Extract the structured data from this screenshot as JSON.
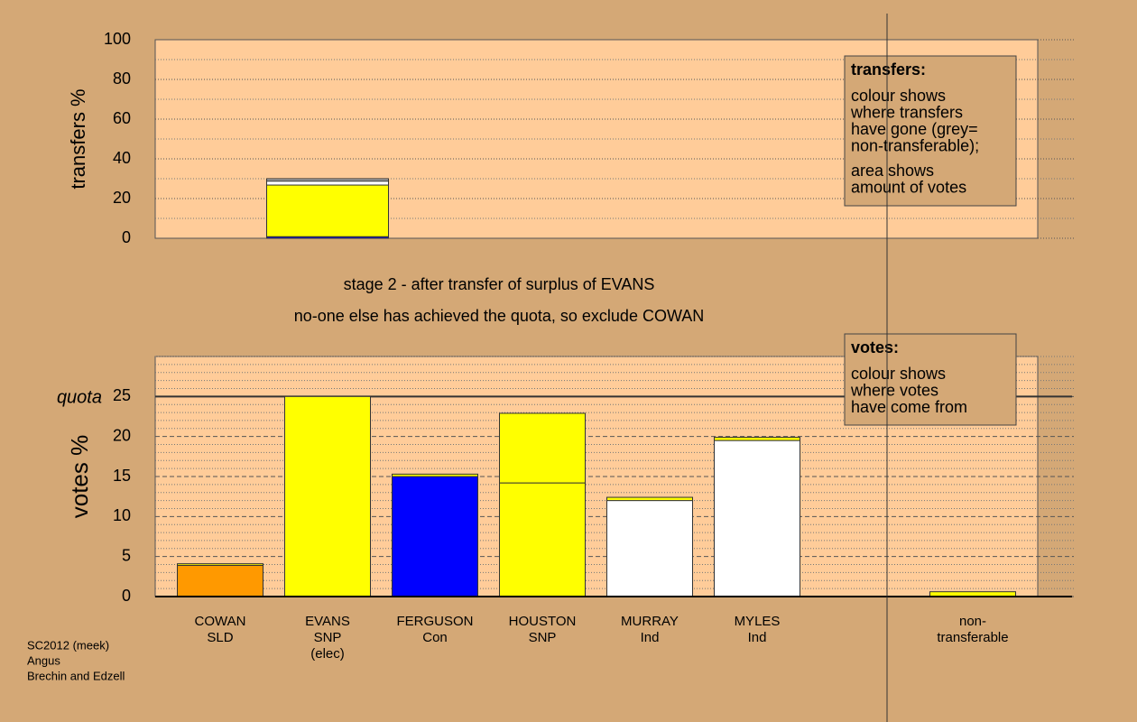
{
  "chart_data": [
    {
      "type": "bar",
      "stacked": true,
      "ylabel": "transfers %",
      "ylim": [
        0,
        100
      ],
      "yticks": [
        0,
        20,
        40,
        60,
        80,
        100
      ],
      "minor_yticks": [
        10,
        30,
        50,
        70,
        90
      ],
      "series": [
        {
          "color": "#0000ff",
          "values": [
            null,
            0.8,
            null,
            null,
            null,
            null,
            null
          ]
        },
        {
          "color": "#ffff00",
          "values": [
            null,
            26,
            null,
            null,
            null,
            null,
            null
          ]
        },
        {
          "color": "#ffffff",
          "values": [
            null,
            2,
            null,
            null,
            null,
            null,
            null
          ]
        },
        {
          "color": "#aaaaaa",
          "values": [
            null,
            1.2,
            null,
            null,
            null,
            null,
            null
          ]
        }
      ],
      "legend": {
        "title": "transfers:",
        "paragraphs": [
          [
            "colour shows",
            "where transfers",
            "have gone (grey=",
            "non-transferable);"
          ],
          [
            "area shows",
            "amount of votes"
          ]
        ]
      }
    },
    {
      "type": "bar",
      "stacked": true,
      "ylabel": "votes %",
      "ylim": [
        0,
        30
      ],
      "yticks": [
        0,
        5,
        10,
        15,
        20,
        25
      ],
      "minor_yticks": [
        1,
        2,
        3,
        4,
        6,
        7,
        8,
        9,
        11,
        12,
        13,
        14,
        16,
        17,
        18,
        19,
        21,
        22,
        23,
        24,
        26,
        27,
        28,
        29,
        30
      ],
      "quota": {
        "value": 25,
        "label": "quota"
      },
      "categories": [
        [
          "COWAN",
          "SLD"
        ],
        [
          "EVANS",
          "SNP",
          "(elec)"
        ],
        [
          "FERGUSON",
          "Con"
        ],
        [
          "HOUSTON",
          "SNP"
        ],
        [
          "MURRAY",
          "Ind"
        ],
        [
          "MYLES",
          "Ind"
        ],
        [
          "non-",
          "transferable"
        ]
      ],
      "series": [
        {
          "colors": [
            "#ff9900",
            "#ffff00",
            "#0000ff",
            "#ffff00",
            "#ffffff",
            "#ffffff",
            null
          ],
          "values": [
            3.9,
            25,
            15.0,
            14.2,
            12.0,
            19.5,
            null
          ]
        },
        {
          "color": "#ffff00",
          "values": [
            0.2,
            null,
            0.3,
            8.7,
            0.4,
            0.4,
            0.6
          ]
        }
      ],
      "legend": {
        "title": "votes:",
        "paragraphs": [
          [
            "colour shows",
            "where votes",
            "have come from"
          ]
        ]
      }
    }
  ],
  "stage_lines": [
    "stage 2 - after transfer of surplus of EVANS",
    "no-one else has achieved the quota, so exclude COWAN"
  ],
  "footer": [
    "SC2012 (meek)",
    "Angus",
    "Brechin and Edzell"
  ]
}
